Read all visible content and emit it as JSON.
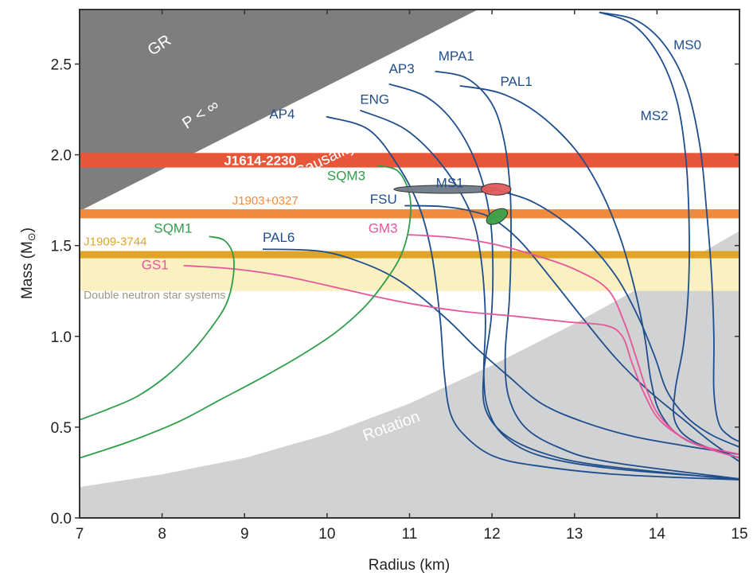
{
  "chart_data": {
    "type": "line",
    "title": "",
    "xlabel": "Radius (km)",
    "ylabel": "Mass (M",
    "ylabel_sub": "⊙",
    "ylabel_close": ")",
    "xlim": [
      7,
      15
    ],
    "ylim": [
      0,
      2.8
    ],
    "grid": false,
    "xticks": [
      7,
      8,
      9,
      10,
      11,
      12,
      13,
      14,
      15
    ],
    "xtick_labels": [
      "7",
      "8",
      "9",
      "10",
      "11",
      "12",
      "13",
      "14",
      "15"
    ],
    "yticks": [
      0,
      0.5,
      1.0,
      1.5,
      2.0,
      2.5
    ],
    "ytick_labels": [
      "0.0",
      "0.5",
      "1.0",
      "1.5",
      "2.0",
      "2.5"
    ],
    "excluded_regions": [
      {
        "name": "GR",
        "label": "GR",
        "color": "#1a1a1a",
        "boundary": [
          [
            7,
            2.38
          ],
          [
            8.24,
            2.8
          ]
        ]
      },
      {
        "name": "P < ∞",
        "label": "P < ∞",
        "color": "#4d4d4f",
        "boundary": [
          [
            7,
            2.13
          ],
          [
            9.24,
            2.8
          ]
        ]
      },
      {
        "name": "Causality",
        "label": "Causality",
        "color": "#7d7e80",
        "boundary": [
          [
            7,
            1.69
          ],
          [
            11.83,
            2.8
          ]
        ]
      },
      {
        "name": "Rotation",
        "label": "Rotation",
        "color": "#d1d2d4",
        "boundary": [
          [
            7,
            0.17
          ],
          [
            8,
            0.24
          ],
          [
            9,
            0.33
          ],
          [
            10,
            0.46
          ],
          [
            11,
            0.63
          ],
          [
            12,
            0.84
          ],
          [
            13,
            1.07
          ],
          [
            14,
            1.32
          ],
          [
            15,
            1.58
          ]
        ]
      }
    ],
    "mass_bands": [
      {
        "name": "J1614-2230",
        "label": "J1614-2230",
        "m_low": 1.93,
        "m_high": 2.01,
        "color": "#e8563a",
        "label_color": "#ffffff",
        "label_r": 8.75
      },
      {
        "name": "J1903+0327",
        "label": "J1903+0327",
        "m_low": 1.65,
        "m_high": 1.7,
        "color": "#f08a3c",
        "label_color": "#f08a3c",
        "label_r": 8.85
      },
      {
        "name": "J1909-3744",
        "label": "J1909-3744",
        "m_low": 1.43,
        "m_high": 1.47,
        "color": "#e0a527",
        "label_color": "#e0a527",
        "label_r": 7.05
      },
      {
        "name": "Double neutron star systems",
        "label": "Double neutron star systems",
        "m_low": 1.25,
        "m_high": 1.43,
        "color": "#fbf0bf",
        "label_color": "#9a9783",
        "label_r": 7.05
      }
    ],
    "ellipses": [
      {
        "name": "ms1-gray",
        "r": 11.44,
        "m": 1.81,
        "r_half": 0.63,
        "m_half": 0.022,
        "color": "#6f7a8a",
        "rotate": 0
      },
      {
        "name": "red-constraint",
        "r": 12.05,
        "m": 1.81,
        "r_half": 0.18,
        "m_half": 0.032,
        "color": "#e15b5d",
        "rotate": 0
      },
      {
        "name": "green-constraint",
        "r": 12.06,
        "m": 1.66,
        "r_half": 0.14,
        "m_half": 0.035,
        "color": "#3aa14a",
        "rotate": -30
      }
    ],
    "series": [
      {
        "name": "AP4",
        "family": "nucleon",
        "color": "#1f4e8c",
        "label_pos": [
          9.3,
          2.2
        ],
        "points": [
          [
            9.99,
            2.21
          ],
          [
            10.5,
            2.14
          ],
          [
            10.86,
            1.94
          ],
          [
            11.12,
            1.71
          ],
          [
            11.27,
            1.45
          ],
          [
            11.37,
            1.1
          ],
          [
            11.42,
            0.8
          ],
          [
            11.5,
            0.57
          ],
          [
            11.7,
            0.44
          ],
          [
            12.02,
            0.34
          ],
          [
            12.5,
            0.29
          ],
          [
            13.5,
            0.24
          ],
          [
            15,
            0.21
          ]
        ]
      },
      {
        "name": "ENG",
        "family": "nucleon",
        "color": "#1f4e8c",
        "label_pos": [
          10.4,
          2.28
        ],
        "points": [
          [
            10.4,
            2.245
          ],
          [
            10.95,
            2.14
          ],
          [
            11.4,
            1.94
          ],
          [
            11.73,
            1.69
          ],
          [
            11.86,
            1.45
          ],
          [
            11.92,
            1.1
          ],
          [
            11.9,
            0.8
          ],
          [
            11.95,
            0.6
          ],
          [
            12.15,
            0.45
          ],
          [
            12.6,
            0.34
          ],
          [
            13.5,
            0.27
          ],
          [
            15,
            0.215
          ]
        ]
      },
      {
        "name": "AP3",
        "family": "nucleon",
        "color": "#1f4e8c",
        "label_pos": [
          10.75,
          2.45
        ],
        "points": [
          [
            10.75,
            2.39
          ],
          [
            11.2,
            2.32
          ],
          [
            11.55,
            2.17
          ],
          [
            11.82,
            1.94
          ],
          [
            11.97,
            1.67
          ],
          [
            12.01,
            1.4
          ],
          [
            11.99,
            1.1
          ],
          [
            11.9,
            0.8
          ],
          [
            11.92,
            0.6
          ],
          [
            12.15,
            0.46
          ],
          [
            12.6,
            0.36
          ],
          [
            13.3,
            0.29
          ],
          [
            15,
            0.21
          ]
        ]
      },
      {
        "name": "MPA1",
        "family": "nucleon",
        "color": "#1f4e8c",
        "label_pos": [
          11.35,
          2.52
        ],
        "points": [
          [
            11.31,
            2.46
          ],
          [
            11.7,
            2.42
          ],
          [
            12.0,
            2.28
          ],
          [
            12.15,
            2.07
          ],
          [
            12.22,
            1.8
          ],
          [
            12.23,
            1.5
          ],
          [
            12.21,
            1.2
          ],
          [
            12.16,
            0.9
          ],
          [
            12.2,
            0.67
          ],
          [
            12.4,
            0.5
          ],
          [
            12.8,
            0.39
          ],
          [
            13.4,
            0.31
          ],
          [
            15,
            0.215
          ]
        ]
      },
      {
        "name": "PAL1",
        "family": "nucleon",
        "color": "#1f4e8c",
        "label_pos": [
          12.1,
          2.38
        ],
        "points": [
          [
            11.61,
            2.38
          ],
          [
            12.1,
            2.34
          ],
          [
            12.55,
            2.23
          ],
          [
            12.99,
            2.04
          ],
          [
            13.3,
            1.82
          ],
          [
            13.55,
            1.55
          ],
          [
            13.72,
            1.28
          ],
          [
            13.85,
            1.0
          ],
          [
            13.93,
            0.75
          ],
          [
            14.05,
            0.57
          ],
          [
            14.35,
            0.43
          ],
          [
            15,
            0.33
          ]
        ]
      },
      {
        "name": "MS0",
        "family": "nucleon",
        "color": "#1f4e8c",
        "label_pos": [
          14.2,
          2.58
        ],
        "points": [
          [
            13.3,
            2.785
          ],
          [
            13.75,
            2.74
          ],
          [
            14.1,
            2.6
          ],
          [
            14.36,
            2.37
          ],
          [
            14.52,
            2.05
          ],
          [
            14.6,
            1.7
          ],
          [
            14.66,
            1.35
          ],
          [
            14.69,
            1.0
          ],
          [
            14.69,
            0.7
          ],
          [
            14.75,
            0.52
          ],
          [
            14.88,
            0.45
          ],
          [
            15,
            0.42
          ]
        ]
      },
      {
        "name": "MS2",
        "family": "nucleon",
        "color": "#1f4e8c",
        "label_pos": [
          13.8,
          2.19
        ],
        "points": [
          [
            13.3,
            2.785
          ],
          [
            13.7,
            2.72
          ],
          [
            14.02,
            2.55
          ],
          [
            14.24,
            2.3
          ],
          [
            14.35,
            1.98
          ],
          [
            14.39,
            1.6
          ],
          [
            14.38,
            1.25
          ],
          [
            14.32,
            0.95
          ],
          [
            14.22,
            0.7
          ],
          [
            14.22,
            0.53
          ],
          [
            14.45,
            0.42
          ],
          [
            15,
            0.33
          ]
        ]
      },
      {
        "name": "MS1",
        "family": "nucleon",
        "color": "#1f4e8c",
        "label_pos": [
          11.32,
          1.82
        ],
        "points": [
          [
            12.02,
            1.81
          ],
          [
            12.45,
            1.75
          ],
          [
            12.85,
            1.64
          ],
          [
            13.2,
            1.5
          ],
          [
            13.52,
            1.32
          ],
          [
            13.78,
            1.1
          ],
          [
            13.98,
            0.88
          ],
          [
            14.12,
            0.7
          ],
          [
            14.35,
            0.56
          ],
          [
            14.65,
            0.46
          ],
          [
            15,
            0.39
          ]
        ]
      },
      {
        "name": "FSU",
        "family": "nucleon",
        "color": "#1f4e8c",
        "label_pos": [
          10.52,
          1.73
        ],
        "points": [
          [
            10.94,
            1.72
          ],
          [
            11.4,
            1.715
          ],
          [
            11.75,
            1.69
          ],
          [
            12.02,
            1.645
          ],
          [
            12.35,
            1.52
          ],
          [
            12.75,
            1.3
          ],
          [
            13.1,
            1.1
          ],
          [
            13.5,
            0.88
          ],
          [
            13.9,
            0.7
          ],
          [
            14.3,
            0.55
          ],
          [
            14.65,
            0.42
          ],
          [
            15,
            0.31
          ]
        ]
      },
      {
        "name": "PAL6",
        "family": "nucleon",
        "color": "#1f4e8c",
        "label_pos": [
          9.22,
          1.52
        ],
        "points": [
          [
            9.22,
            1.48
          ],
          [
            9.9,
            1.47
          ],
          [
            10.4,
            1.41
          ],
          [
            10.9,
            1.3
          ],
          [
            11.44,
            1.1
          ],
          [
            11.8,
            0.94
          ],
          [
            12.2,
            0.78
          ],
          [
            12.6,
            0.63
          ],
          [
            13.1,
            0.53
          ],
          [
            13.7,
            0.45
          ],
          [
            14.3,
            0.4
          ],
          [
            15,
            0.35
          ]
        ]
      },
      {
        "name": "GM3",
        "family": "hybrid",
        "color": "#e8559a",
        "label_pos": [
          10.5,
          1.57
        ],
        "points": [
          [
            10.98,
            1.56
          ],
          [
            11.5,
            1.545
          ],
          [
            12.0,
            1.51
          ],
          [
            12.5,
            1.45
          ],
          [
            13.0,
            1.37
          ],
          [
            13.4,
            1.26
          ],
          [
            13.6,
            1.08
          ],
          [
            13.75,
            0.88
          ],
          [
            13.88,
            0.7
          ],
          [
            14.05,
            0.55
          ],
          [
            14.4,
            0.42
          ],
          [
            15,
            0.35
          ]
        ]
      },
      {
        "name": "GS1",
        "family": "hybrid",
        "color": "#e8559a",
        "label_pos": [
          7.75,
          1.37
        ],
        "points": [
          [
            8.26,
            1.39
          ],
          [
            8.9,
            1.37
          ],
          [
            9.5,
            1.33
          ],
          [
            10.2,
            1.26
          ],
          [
            10.9,
            1.19
          ],
          [
            11.6,
            1.14
          ],
          [
            12.3,
            1.11
          ],
          [
            12.9,
            1.08
          ],
          [
            13.38,
            1.06
          ],
          [
            13.58,
            1.0
          ],
          [
            13.7,
            0.85
          ],
          [
            13.85,
            0.68
          ],
          [
            14.05,
            0.53
          ],
          [
            14.45,
            0.41
          ],
          [
            15,
            0.33
          ]
        ]
      },
      {
        "name": "SQM1",
        "family": "strange",
        "color": "#2f9e4a",
        "label_pos": [
          7.9,
          1.57
        ],
        "points": [
          [
            8.57,
            1.55
          ],
          [
            8.75,
            1.53
          ],
          [
            8.86,
            1.45
          ],
          [
            8.86,
            1.32
          ],
          [
            8.78,
            1.18
          ],
          [
            8.6,
            1.05
          ],
          [
            8.35,
            0.91
          ],
          [
            8.05,
            0.78
          ],
          [
            7.7,
            0.67
          ],
          [
            7.35,
            0.6
          ],
          [
            7.0,
            0.54
          ]
        ]
      },
      {
        "name": "SQM3",
        "family": "strange",
        "color": "#2f9e4a",
        "label_pos": [
          10.0,
          1.86
        ],
        "points": [
          [
            10.61,
            1.94
          ],
          [
            10.86,
            1.91
          ],
          [
            11.0,
            1.78
          ],
          [
            11.0,
            1.62
          ],
          [
            10.9,
            1.45
          ],
          [
            10.7,
            1.3
          ],
          [
            10.45,
            1.16
          ],
          [
            10.1,
            1.02
          ],
          [
            9.7,
            0.9
          ],
          [
            9.2,
            0.77
          ],
          [
            8.7,
            0.65
          ],
          [
            8.2,
            0.53
          ],
          [
            7.6,
            0.42
          ],
          [
            7.0,
            0.33
          ]
        ]
      }
    ]
  }
}
